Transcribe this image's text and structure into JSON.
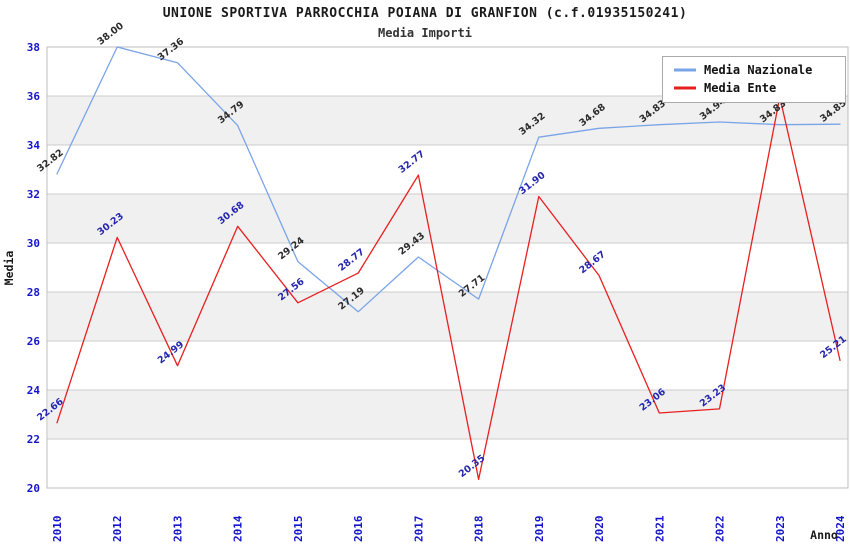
{
  "title": "UNIONE SPORTIVA PARROCCHIA POIANA DI GRANFION (c.f.01935150241)",
  "subtitle": "Media Importi",
  "chart_data": {
    "type": "line",
    "title": "UNIONE SPORTIVA PARROCCHIA POIANA DI GRANFION (c.f.01935150241)",
    "subtitle": "Media Importi",
    "xlabel": "Anno",
    "ylabel": "Media",
    "ylim": [
      20,
      38
    ],
    "yticks": [
      20,
      22,
      24,
      26,
      28,
      30,
      32,
      34,
      36,
      38
    ],
    "grid": "horizontal",
    "band_fill": "#f0f0f0",
    "gridline_color": "#cccccc",
    "border_color": "#bdbdbd",
    "axis_tick_color": "#1414cc",
    "legend_position": "top-right",
    "categories": [
      "2010",
      "2012",
      "2013",
      "2014",
      "2015",
      "2016",
      "2017",
      "2018",
      "2019",
      "2020",
      "2021",
      "2022",
      "2023",
      "2024"
    ],
    "series": [
      {
        "name": "Media Nazionale",
        "color": "#7aa4e8",
        "label_color": "#2b2b2b",
        "values": [
          32.82,
          38.0,
          37.36,
          34.79,
          29.24,
          27.19,
          29.43,
          27.71,
          34.32,
          34.68,
          34.83,
          34.94,
          34.83,
          34.85
        ],
        "labels": [
          "32.82",
          "38.00",
          "37.36",
          "34.79",
          "29.24",
          "27.19",
          "29.43",
          "27.71",
          "34.32",
          "34.68",
          "34.83",
          "34.94",
          "34.83",
          "34.85"
        ]
      },
      {
        "name": "Media Ente",
        "color": "#e81f1f",
        "label_color": "#2525b0",
        "values": [
          22.66,
          30.23,
          24.99,
          30.68,
          27.56,
          28.77,
          32.77,
          20.35,
          31.9,
          28.67,
          23.06,
          23.23,
          35.96,
          25.21
        ],
        "labels": [
          "22.66",
          "30.23",
          "24.99",
          "30.68",
          "27.56",
          "28.77",
          "32.77",
          "20.35",
          "31.90",
          "28.67",
          "23.06",
          "23.23",
          "",
          "25.21"
        ]
      }
    ]
  }
}
